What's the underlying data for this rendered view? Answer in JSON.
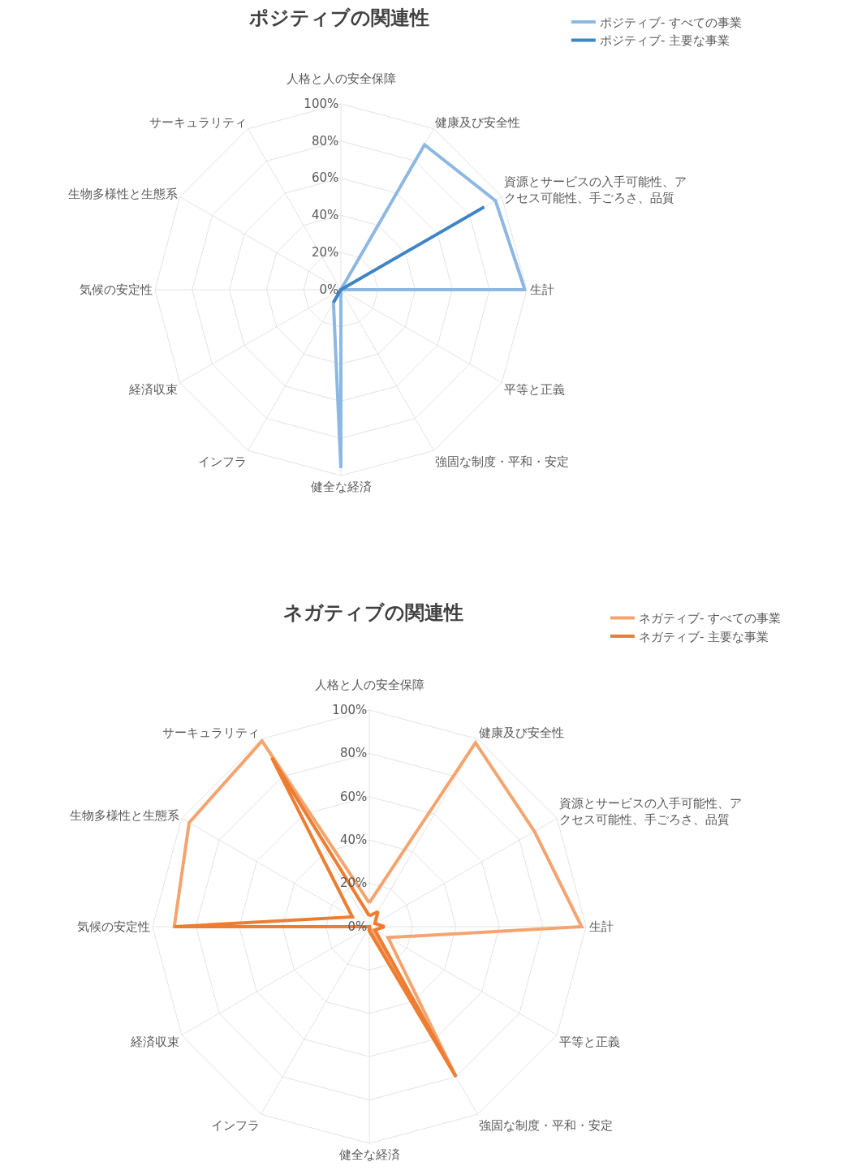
{
  "chart_data": [
    {
      "type": "radar",
      "title": "ポジティブの関連性",
      "categories": [
        "人格と人の安全保障",
        "健康及び安全性",
        "資源とサービスの入手可能性、アクセス可能性、手ごろさ、品質",
        "生計",
        "平等と正義",
        "強固な制度・平和・安定",
        "健全な経済",
        "インフラ",
        "経済収束",
        "気候の安定性",
        "生物多様性と生態系",
        "サーキュラリティ"
      ],
      "series": [
        {
          "name": "ポジティブ- すべての事業",
          "color": "#8db8e2",
          "values": [
            0,
            90,
            96,
            99,
            0,
            0,
            96,
            8,
            0,
            0,
            0,
            0
          ]
        },
        {
          "name": "ポジティブ- 主要な事業",
          "color": "#3d85c6",
          "values": [
            0,
            0,
            89,
            0,
            0,
            0,
            0,
            8,
            0,
            0,
            0,
            0
          ]
        }
      ],
      "ylim": [
        0,
        100
      ],
      "yticks": [
        {
          "value": 0,
          "label": "0%"
        },
        {
          "value": 20,
          "label": "20%"
        },
        {
          "value": 40,
          "label": "40%"
        },
        {
          "value": 60,
          "label": "60%"
        },
        {
          "value": 80,
          "label": "80%"
        },
        {
          "value": 100,
          "label": "100%"
        }
      ],
      "grid": true,
      "legend": "top right",
      "marker": "none",
      "line_style": "solid"
    },
    {
      "type": "radar",
      "title": "ネガティブの関連性",
      "categories": [
        "人格と人の安全保障",
        "健康及び安全性",
        "資源とサービスの入手可能性、アクセス可能性、手ごろさ、品質",
        "生計",
        "平等と正義",
        "強固な制度・平和・安定",
        "健全な経済",
        "インフラ",
        "経済収束",
        "気候の安定性",
        "生物多様性と生態系",
        "サーキュラリティ"
      ],
      "series": [
        {
          "name": "ネガティブ- すべての事業",
          "color": "#f4a46e",
          "values": [
            11,
            98,
            88,
            98,
            10,
            80,
            0,
            0,
            0,
            90,
            96,
            99
          ]
        },
        {
          "name": "ネガティブ- 主要な事業",
          "color": "#ed7d31",
          "values": [
            5,
            8,
            3,
            7,
            3,
            80,
            2,
            0,
            0,
            90,
            9,
            90
          ]
        }
      ],
      "ylim": [
        0,
        100
      ],
      "yticks": [
        {
          "value": 0,
          "label": "0%"
        },
        {
          "value": 20,
          "label": "20%"
        },
        {
          "value": 40,
          "label": "40%"
        },
        {
          "value": 60,
          "label": "60%"
        },
        {
          "value": 80,
          "label": "80%"
        },
        {
          "value": 100,
          "label": "100%"
        }
      ],
      "grid": true,
      "legend": "top right",
      "marker": "none",
      "line_style": "solid"
    }
  ]
}
